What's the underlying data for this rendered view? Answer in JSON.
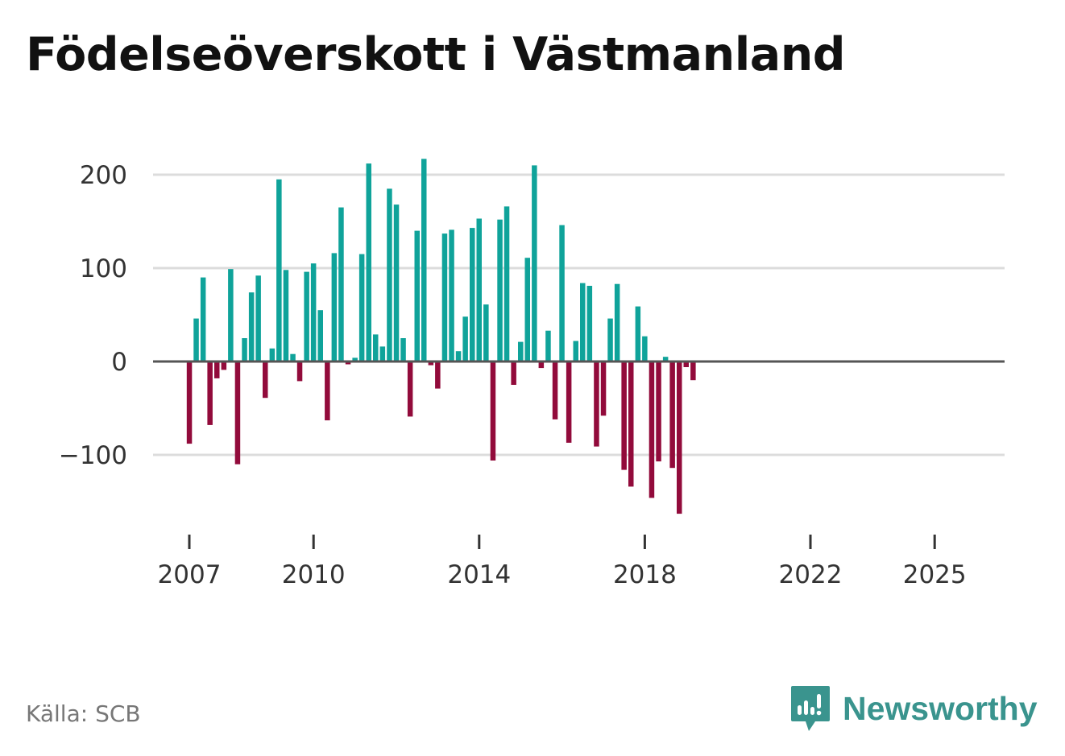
{
  "chart_data": {
    "type": "bar",
    "title": "Födelseöverskott i Västmanland",
    "xlabel": "",
    "ylabel": "",
    "ylim": [
      -165,
      220
    ],
    "yticks": [
      200,
      100,
      0,
      -100
    ],
    "ytick_labels": [
      "200",
      "100",
      "0",
      "−100"
    ],
    "xtick_labels": [
      "2007",
      "2010",
      "2014",
      "2018",
      "2022",
      "2025"
    ],
    "x_start": "2007-01",
    "x_end": "2025-12",
    "period": "month",
    "note": "bars are monthly values; one bar per two months shown",
    "values": [
      -88,
      46,
      90,
      -68,
      -18,
      -9,
      99,
      -110,
      25,
      74,
      92,
      -39,
      14,
      195,
      98,
      8,
      -21,
      96,
      105,
      55,
      -63,
      116,
      165,
      -3,
      4,
      115,
      212,
      29,
      16,
      185,
      168,
      25,
      -59,
      140,
      217,
      -4,
      -29,
      137,
      141,
      11,
      48,
      143,
      153,
      61,
      -106,
      152,
      166,
      -25,
      21,
      111,
      210,
      -7,
      33,
      -62,
      146,
      -87,
      22,
      84,
      81,
      -91,
      -58,
      46,
      83,
      -116,
      -134,
      59,
      27,
      -146,
      -107,
      5,
      -114,
      -163,
      -6,
      -20
    ],
    "colors": {
      "positive": "#0fa39a",
      "negative": "#920b3b",
      "zero_line": "#555555",
      "grid": "#dcdcdc"
    }
  },
  "footer": {
    "source": "Källa: SCB",
    "brand": "Newsworthy",
    "brand_icon": "newsworthy-logo-icon",
    "brand_color": "#3a948e"
  }
}
